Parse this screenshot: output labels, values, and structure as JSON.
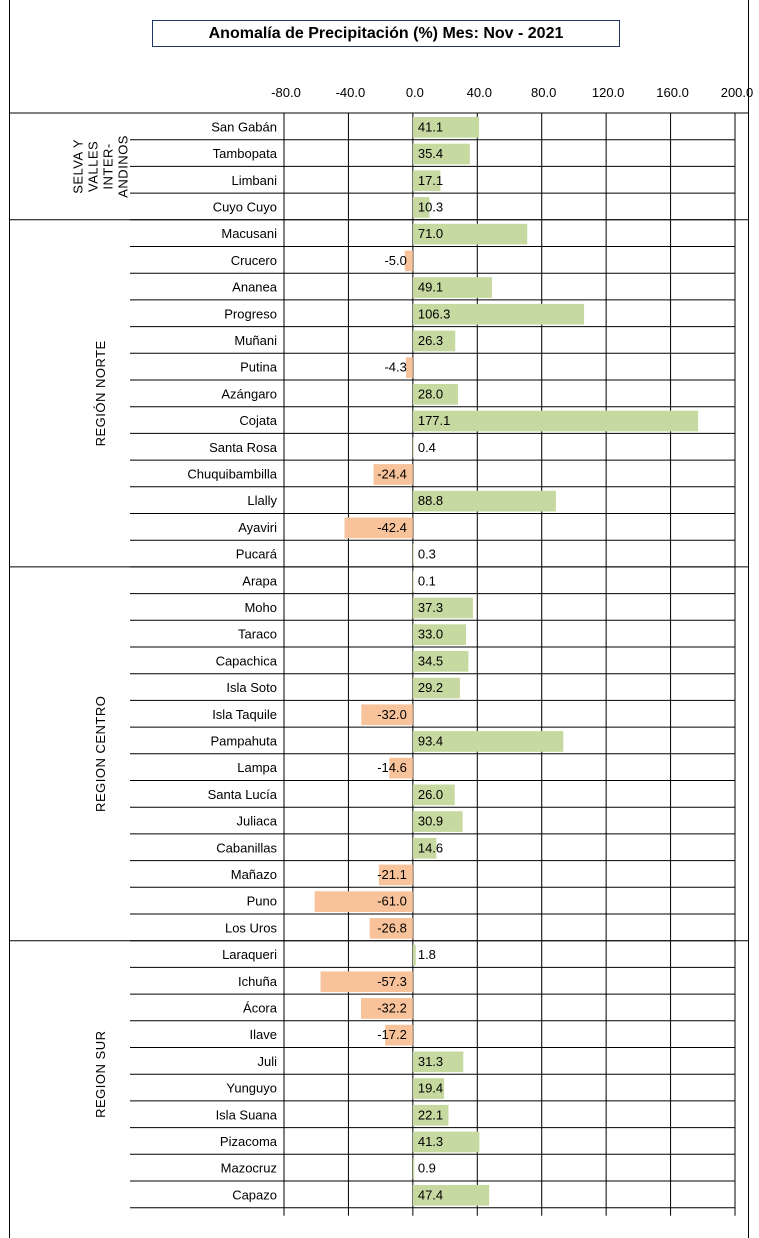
{
  "title": "Anomalía de Precipitación (%)  Mes: Nov - 2021",
  "colors": {
    "positive": "#c6d9a0",
    "negative": "#f8c39a",
    "grid": "#000000"
  },
  "chart_data": {
    "type": "bar",
    "orientation": "horizontal",
    "title": "Anomalía de Precipitación (%)  Mes: Nov - 2021",
    "xlim": [
      -80,
      200
    ],
    "xticks": [
      "-80.0",
      "-40.0",
      "0.0",
      "40.0",
      "80.0",
      "120.0",
      "160.0",
      "200.0"
    ],
    "tick_values": [
      -80,
      -40,
      0,
      40,
      80,
      120,
      160,
      200
    ],
    "grid": true,
    "groups": [
      {
        "label_lines": [
          "SELVA Y",
          "VALLES",
          "INTER-",
          "ANDINOS"
        ],
        "items": [
          {
            "name": "San Gabán",
            "value": 41.1,
            "label": "41.1"
          },
          {
            "name": "Tambopata",
            "value": 35.4,
            "label": "35.4"
          },
          {
            "name": "Limbani",
            "value": 17.1,
            "label": "17.1"
          },
          {
            "name": "Cuyo Cuyo",
            "value": 10.3,
            "label": "10.3"
          }
        ]
      },
      {
        "label_lines": [
          "REGIÓN NORTE"
        ],
        "items": [
          {
            "name": "Macusani",
            "value": 71.0,
            "label": "71.0"
          },
          {
            "name": "Crucero",
            "value": -5.0,
            "label": "-5.0"
          },
          {
            "name": "Ananea",
            "value": 49.1,
            "label": "49.1"
          },
          {
            "name": "Progreso",
            "value": 106.3,
            "label": "106.3"
          },
          {
            "name": "Muñani",
            "value": 26.3,
            "label": "26.3"
          },
          {
            "name": "Putina",
            "value": -4.3,
            "label": "-4.3"
          },
          {
            "name": "Azángaro",
            "value": 28.0,
            "label": "28.0"
          },
          {
            "name": "Cojata",
            "value": 177.1,
            "label": "177.1"
          },
          {
            "name": "Santa Rosa",
            "value": 0.4,
            "label": "0.4"
          },
          {
            "name": "Chuquibambilla",
            "value": -24.4,
            "label": "-24.4"
          },
          {
            "name": "Llally",
            "value": 88.8,
            "label": "88.8"
          },
          {
            "name": "Ayaviri",
            "value": -42.4,
            "label": "-42.4"
          },
          {
            "name": "Pucará",
            "value": 0.3,
            "label": "0.3"
          }
        ]
      },
      {
        "label_lines": [
          "REGION  CENTRO"
        ],
        "items": [
          {
            "name": "Arapa",
            "value": 0.1,
            "label": "0.1"
          },
          {
            "name": "Moho",
            "value": 37.3,
            "label": "37.3"
          },
          {
            "name": "Taraco",
            "value": 33.0,
            "label": "33.0"
          },
          {
            "name": "Capachica",
            "value": 34.5,
            "label": "34.5"
          },
          {
            "name": "Isla Soto",
            "value": 29.2,
            "label": "29.2"
          },
          {
            "name": "Isla Taquile",
            "value": -32.0,
            "label": "-32.0"
          },
          {
            "name": "Pampahuta",
            "value": 93.4,
            "label": "93.4"
          },
          {
            "name": "Lampa",
            "value": -14.6,
            "label": "-14.6"
          },
          {
            "name": "Santa Lucía",
            "value": 26.0,
            "label": "26.0"
          },
          {
            "name": "Juliaca",
            "value": 30.9,
            "label": "30.9"
          },
          {
            "name": "Cabanillas",
            "value": 14.6,
            "label": "14.6"
          },
          {
            "name": "Mañazo",
            "value": -21.1,
            "label": "-21.1"
          },
          {
            "name": "Puno",
            "value": -61.0,
            "label": "-61.0"
          },
          {
            "name": "Los Uros",
            "value": -26.8,
            "label": "-26.8"
          }
        ]
      },
      {
        "label_lines": [
          "REGION SUR"
        ],
        "items": [
          {
            "name": "Laraqueri",
            "value": 1.8,
            "label": "1.8"
          },
          {
            "name": "Ichuña",
            "value": -57.3,
            "label": "-57.3"
          },
          {
            "name": "Ácora",
            "value": -32.2,
            "label": "-32.2"
          },
          {
            "name": "Ilave",
            "value": -17.2,
            "label": "-17.2"
          },
          {
            "name": "Juli",
            "value": 31.3,
            "label": "31.3"
          },
          {
            "name": "Yunguyo",
            "value": 19.4,
            "label": "19.4"
          },
          {
            "name": "Isla Suana",
            "value": 22.1,
            "label": "22.1"
          },
          {
            "name": "Pizacoma",
            "value": 41.3,
            "label": "41.3"
          },
          {
            "name": "Mazocruz",
            "value": 0.9,
            "label": "0.9"
          },
          {
            "name": "Capazo",
            "value": 47.4,
            "label": "47.4"
          }
        ]
      }
    ]
  }
}
